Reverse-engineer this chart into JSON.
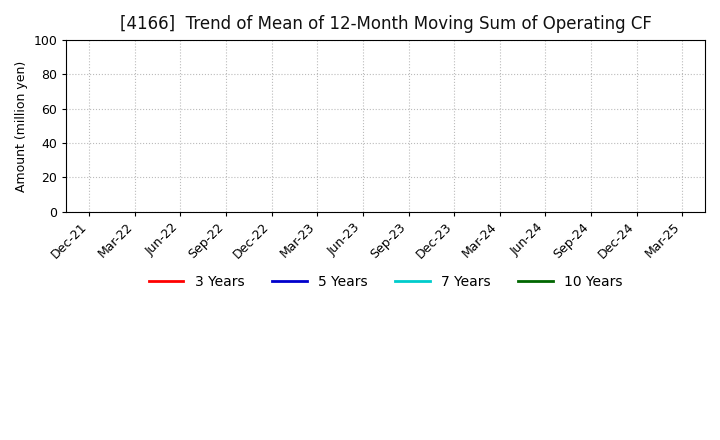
{
  "title": "[4166]  Trend of Mean of 12-Month Moving Sum of Operating CF",
  "ylabel": "Amount (million yen)",
  "ylim": [
    0,
    100
  ],
  "yticks": [
    0,
    20,
    40,
    60,
    80,
    100
  ],
  "background_color": "#ffffff",
  "title_fontsize": 12,
  "legend_entries": [
    {
      "label": "3 Years",
      "color": "#ff0000"
    },
    {
      "label": "5 Years",
      "color": "#0000cc"
    },
    {
      "label": "7 Years",
      "color": "#00cccc"
    },
    {
      "label": "10 Years",
      "color": "#006600"
    }
  ],
  "x_tick_labels": [
    "Dec-21",
    "Mar-22",
    "Jun-22",
    "Sep-22",
    "Dec-22",
    "Mar-23",
    "Jun-23",
    "Sep-23",
    "Dec-23",
    "Mar-24",
    "Jun-24",
    "Sep-24",
    "Dec-24",
    "Mar-25"
  ],
  "grid_color": "#bbbbbb",
  "spine_color": "#000000"
}
